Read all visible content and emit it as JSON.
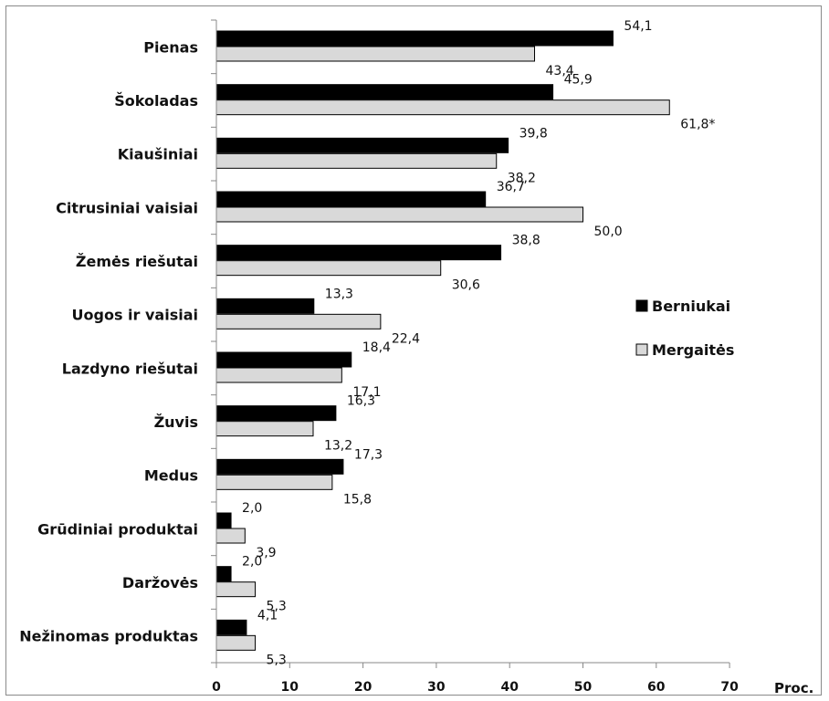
{
  "chart_data": {
    "type": "bar",
    "orientation": "horizontal",
    "categories": [
      "Pienas",
      "Šokoladas",
      "Kiaušiniai",
      "Citrusiniai vaisiai",
      "Žemės riešutai",
      "Uogos ir vaisiai",
      "Lazdyno riešutai",
      "Žuvis",
      "Medus",
      "Grūdiniai produktai",
      "Daržovės",
      "Nežinomas produktas"
    ],
    "series": [
      {
        "name": "Berniukai",
        "color": "#000000",
        "values": [
          54.1,
          45.9,
          39.8,
          36.7,
          38.8,
          13.3,
          18.4,
          16.3,
          17.3,
          2.0,
          2.0,
          4.1
        ],
        "labels": [
          "54,1",
          "45,9",
          "39,8",
          "36,7",
          "38,8",
          "13,3",
          "18,4",
          "16,3",
          "17,3",
          "2,0",
          "2,0",
          "4,1"
        ]
      },
      {
        "name": "Mergaitės",
        "color": "#d9d9d9",
        "values": [
          43.4,
          61.8,
          38.2,
          50.0,
          30.6,
          22.4,
          17.1,
          13.2,
          15.8,
          3.9,
          5.3,
          5.3
        ],
        "labels": [
          "43,4",
          "61,8*",
          "38,2",
          "50,0",
          "30,6",
          "22,4",
          "17,1",
          "13,2",
          "15,8",
          "3,9",
          "5,3",
          "5,3"
        ]
      }
    ],
    "x_ticks": [
      "0",
      "10",
      "20",
      "30",
      "40",
      "50",
      "60",
      "70"
    ],
    "xlim": [
      0,
      70
    ],
    "xunit": "Proc.",
    "legend_position": "right",
    "grid": false
  }
}
